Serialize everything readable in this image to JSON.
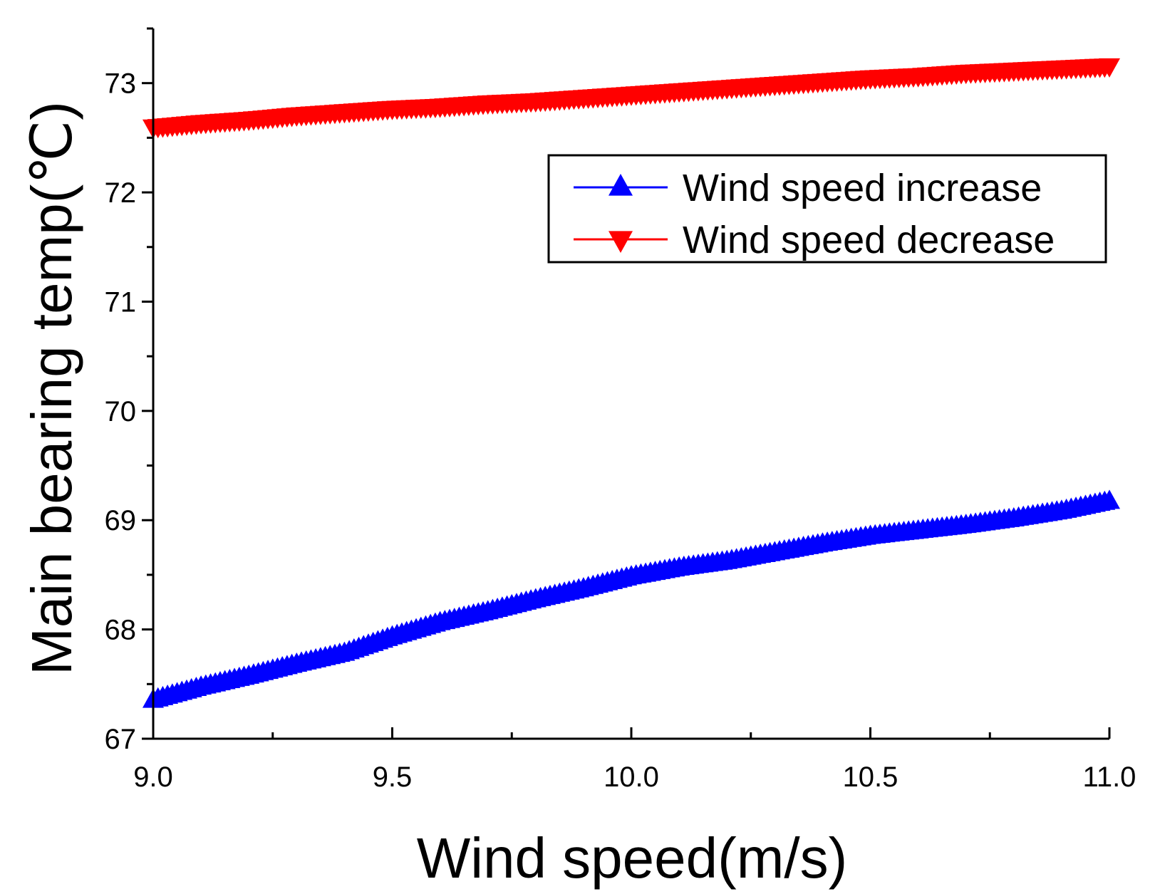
{
  "chart_data": {
    "type": "line",
    "title": "",
    "xlabel": "Wind speed(m/s)",
    "ylabel": "Main bearing temp(℃)",
    "xlim": [
      9.0,
      11.0
    ],
    "ylim": [
      67,
      73.5
    ],
    "xticks": [
      9.0,
      9.5,
      10.0,
      10.5,
      11.0
    ],
    "xtick_labels": [
      "9.0",
      "9.5",
      "10.0",
      "10.5",
      "11.0"
    ],
    "yticks": [
      67,
      68,
      69,
      70,
      71,
      72,
      73
    ],
    "ytick_labels": [
      "67",
      "68",
      "69",
      "70",
      "71",
      "72",
      "73"
    ],
    "grid": false,
    "legend_position": "top-right",
    "series": [
      {
        "name": "Wind speed increase",
        "color": "#0000ff",
        "marker": "triangle-up",
        "x": [
          9.0,
          9.1,
          9.2,
          9.3,
          9.4,
          9.5,
          9.6,
          9.7,
          9.8,
          9.9,
          10.0,
          10.1,
          10.2,
          10.3,
          10.4,
          10.5,
          10.6,
          10.7,
          10.8,
          10.9,
          11.0
        ],
        "values": [
          67.35,
          67.47,
          67.57,
          67.68,
          67.78,
          67.93,
          68.06,
          68.16,
          68.27,
          68.37,
          68.48,
          68.56,
          68.62,
          68.7,
          68.78,
          68.85,
          68.9,
          68.95,
          69.01,
          69.08,
          69.17
        ]
      },
      {
        "name": "Wind speed decrease",
        "color": "#ff0000",
        "marker": "triangle-down",
        "x": [
          9.0,
          9.1,
          9.2,
          9.3,
          9.4,
          9.5,
          9.6,
          9.7,
          9.8,
          9.9,
          10.0,
          10.1,
          10.2,
          10.3,
          10.4,
          10.5,
          10.6,
          10.7,
          10.8,
          10.9,
          11.0
        ],
        "values": [
          72.6,
          72.64,
          72.67,
          72.71,
          72.74,
          72.77,
          72.79,
          72.82,
          72.84,
          72.87,
          72.9,
          72.93,
          72.96,
          72.99,
          73.02,
          73.05,
          73.07,
          73.1,
          73.12,
          73.14,
          73.16
        ]
      }
    ]
  }
}
